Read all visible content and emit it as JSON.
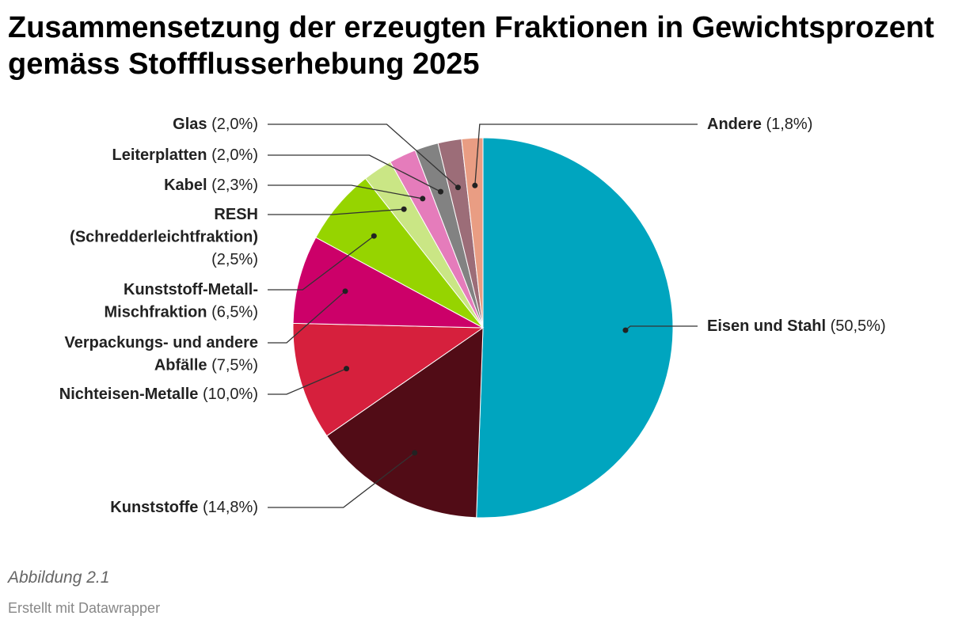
{
  "title": "Zusammensetzung der erzeugten Fraktionen in Gewichtsprozent gemäss Stoffflusserhebung 2025",
  "chart_data": {
    "type": "pie",
    "title": "Zusammensetzung der erzeugten Fraktionen in Gewichtsprozent gemäss Stoffflusserhebung 2025",
    "slices": [
      {
        "name": "Eisen und Stahl",
        "value": 50.5,
        "value_label": "(50,5%)",
        "color": "#00a5bf"
      },
      {
        "name": "Kunststoffe",
        "value": 14.8,
        "value_label": "(14,8%)",
        "color": "#510c16"
      },
      {
        "name": "Nichteisen-Metalle",
        "value": 10.0,
        "value_label": "(10,0%)",
        "color": "#d6203d"
      },
      {
        "name": "Verpackungs- und andere Abfälle",
        "value": 7.5,
        "value_label": "(7,5%)",
        "color": "#cc0069"
      },
      {
        "name": "Kunststoff-Metall-Mischfraktion",
        "value": 6.5,
        "value_label": "(6,5%)",
        "color": "#96d400"
      },
      {
        "name": "RESH (Schredderleichtfraktion)",
        "value": 2.5,
        "value_label": "(2,5%)",
        "color": "#cae685"
      },
      {
        "name": "Kabel",
        "value": 2.3,
        "value_label": "(2,3%)",
        "color": "#e57cbb"
      },
      {
        "name": "Leiterplatten",
        "value": 2.0,
        "value_label": "(2,0%)",
        "color": "#828282"
      },
      {
        "name": "Glas",
        "value": 2.0,
        "value_label": "(2,0%)",
        "color": "#9c6d78"
      },
      {
        "name": "Andere",
        "value": 1.8,
        "value_label": "(1,8%)",
        "color": "#e99d83"
      }
    ]
  },
  "caption": "Abbildung 2.1",
  "credit": "Erstellt mit Datawrapper"
}
